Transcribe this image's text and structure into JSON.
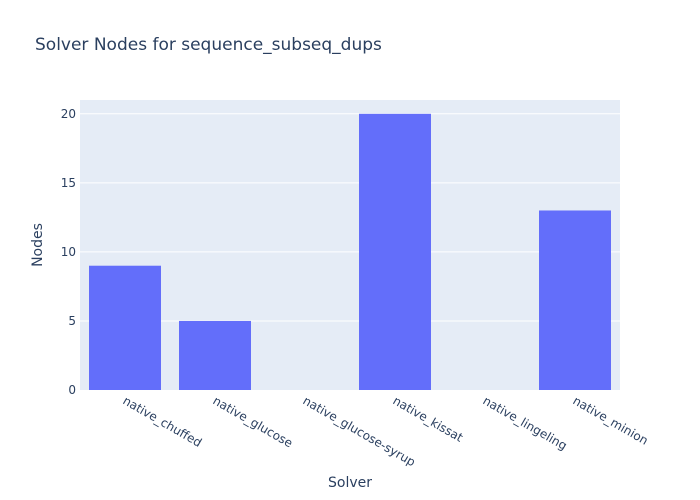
{
  "chart_data": {
    "type": "bar",
    "title": "Solver Nodes for sequence_subseq_dups",
    "xlabel": "Solver",
    "ylabel": "Nodes",
    "categories": [
      "native_chuffed",
      "native_glucose",
      "native_glucose-syrup",
      "native_kissat",
      "native_lingeling",
      "native_minion"
    ],
    "values": [
      9,
      5,
      0,
      20,
      0,
      13
    ],
    "ylim": [
      0,
      21
    ],
    "yticks": [
      0,
      5,
      10,
      15,
      20
    ],
    "grid": true,
    "colors": {
      "bar": "#636efa",
      "plot_bg": "#e5ecf6",
      "grid": "#ffffff",
      "text": "#2a3f5f"
    }
  }
}
